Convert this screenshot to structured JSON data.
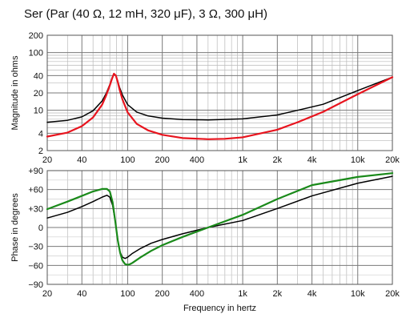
{
  "chart_data": [
    {
      "type": "line",
      "title": "Ser (Par (40 Ω, 12 mH, 320 μF), 3 Ω, 300 μH)",
      "xlabel": "",
      "ylabel": "Magnitude in ohms",
      "xscale": "log",
      "yscale": "log",
      "xlim": [
        20,
        20000
      ],
      "ylim": [
        2,
        200
      ],
      "x_ticks": [
        20,
        40,
        100,
        200,
        400,
        1000,
        2000,
        4000,
        10000,
        20000
      ],
      "x_tick_labels": [
        "20",
        "40",
        "100",
        "200",
        "400",
        "1k",
        "2k",
        "4k",
        "10k",
        "20k"
      ],
      "y_ticks": [
        2,
        4,
        10,
        20,
        40,
        100,
        200
      ],
      "y_tick_labels": [
        "2",
        "4",
        "10",
        "20",
        "40",
        "100",
        "200"
      ],
      "grid": true,
      "series": [
        {
          "color": "#000000",
          "x": [
            20,
            30,
            40,
            50,
            60,
            65,
            70,
            73,
            76,
            79,
            82,
            85,
            90,
            100,
            120,
            150,
            200,
            300,
            500,
            1000,
            2000,
            3000,
            5000,
            10000,
            20000
          ],
          "y": [
            6.2,
            6.7,
            7.7,
            9.8,
            14.5,
            19.5,
            28,
            36,
            43,
            40,
            32,
            25,
            18.5,
            12.5,
            9.3,
            8.0,
            7.3,
            6.9,
            6.8,
            7.1,
            8.3,
            10,
            12.7,
            22,
            37.5
          ]
        },
        {
          "color": "#e8141e",
          "x": [
            20,
            30,
            40,
            50,
            60,
            65,
            70,
            73,
            76,
            79,
            82,
            85,
            90,
            100,
            120,
            150,
            200,
            300,
            500,
            700,
            1000,
            2000,
            3000,
            5000,
            10000,
            20000
          ],
          "y": [
            3.5,
            4.1,
            5.3,
            7.5,
            12.5,
            18,
            27,
            35,
            43,
            40,
            31,
            23,
            15.5,
            9.2,
            5.8,
            4.5,
            3.75,
            3.3,
            3.15,
            3.2,
            3.4,
            4.6,
            6.2,
            9.4,
            19,
            37.5
          ]
        }
      ]
    },
    {
      "type": "line",
      "xlabel": "Frequency in hertz",
      "ylabel": "Phase in degrees",
      "xscale": "log",
      "xlim": [
        20,
        20000
      ],
      "ylim": [
        -90,
        90
      ],
      "x_ticks": [
        20,
        40,
        100,
        200,
        400,
        1000,
        2000,
        4000,
        10000,
        20000
      ],
      "x_tick_labels": [
        "20",
        "40",
        "100",
        "200",
        "400",
        "1k",
        "2k",
        "4k",
        "10k",
        "20k"
      ],
      "y_ticks": [
        90,
        60,
        30,
        0,
        -30,
        -60,
        -90
      ],
      "y_tick_labels": [
        "+90",
        "+60",
        "+30",
        "0",
        "−30",
        "−60",
        "−90"
      ],
      "grid": true,
      "series": [
        {
          "color": "#000000",
          "x": [
            20,
            30,
            40,
            50,
            60,
            66,
            70,
            74,
            78,
            82,
            86,
            90,
            95,
            100,
            110,
            130,
            160,
            200,
            300,
            500,
            1000,
            2000,
            4000,
            10000,
            20000
          ],
          "y": [
            15,
            24,
            33,
            41,
            48,
            51,
            48,
            35,
            10,
            -20,
            -39,
            -47,
            -49,
            -47,
            -41,
            -33,
            -25,
            -19,
            -10,
            0,
            11,
            30,
            50,
            70,
            81
          ]
        },
        {
          "color": "#1a8a1a",
          "x": [
            20,
            30,
            40,
            50,
            60,
            66,
            70,
            74,
            78,
            82,
            86,
            90,
            95,
            100,
            105,
            110,
            130,
            160,
            200,
            300,
            500,
            1000,
            2000,
            4000,
            10000,
            20000
          ],
          "y": [
            29,
            41,
            50,
            57,
            61,
            61,
            57,
            40,
            10,
            -20,
            -40,
            -52,
            -58,
            -59,
            -58,
            -56,
            -47,
            -37,
            -28,
            -15,
            0,
            20,
            45,
            67,
            80,
            86
          ]
        }
      ]
    }
  ]
}
